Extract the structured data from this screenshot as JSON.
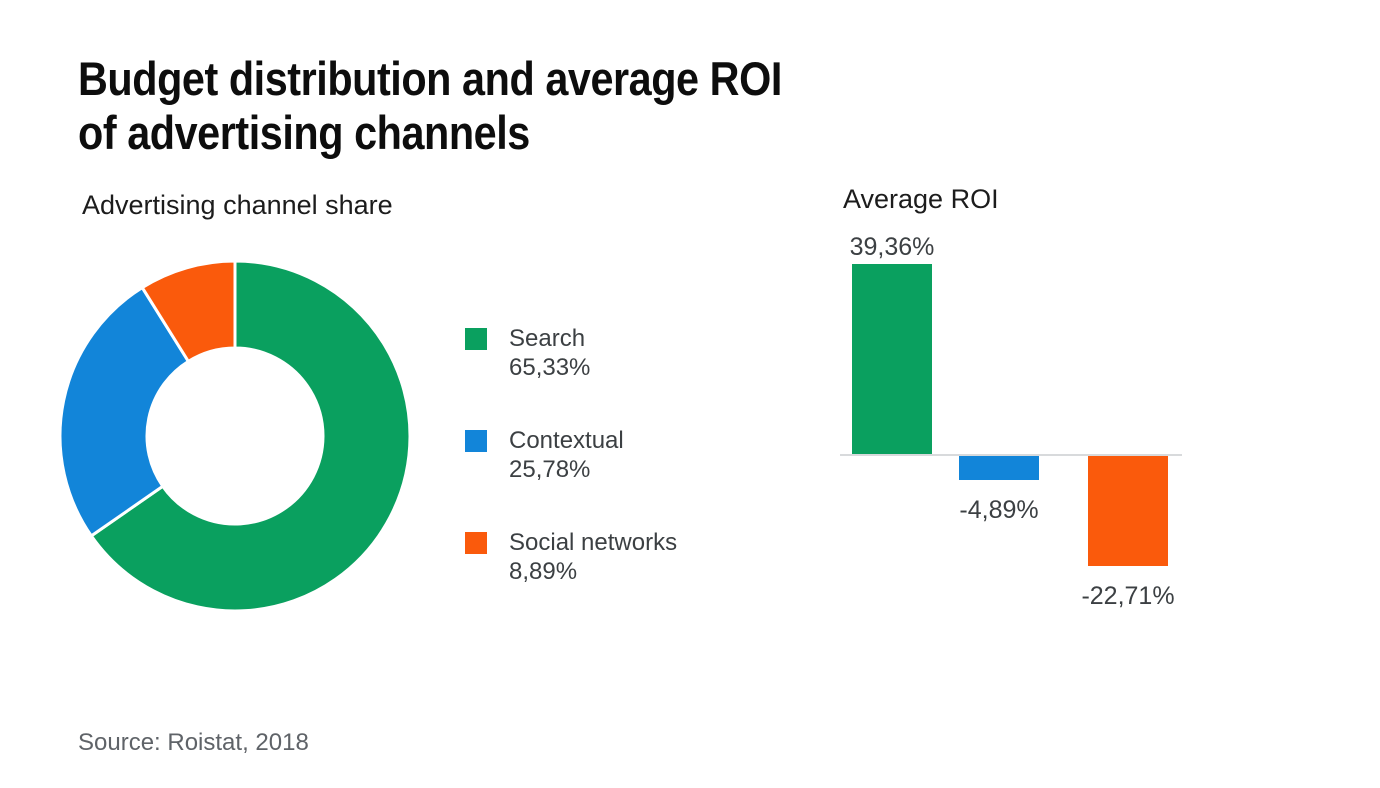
{
  "title": {
    "line1": "Budget distribution and average ROI",
    "line2": "of advertising channels"
  },
  "source": "Source: Roistat, 2018",
  "colors": {
    "green": "#0aa05f",
    "blue": "#1285d9",
    "orange": "#fa5a0c",
    "axis": "#d8dadc",
    "label_gray": "#3c4043"
  },
  "chart_data": [
    {
      "type": "pie",
      "style": "donut",
      "title": "Advertising channel share",
      "labels": [
        "Search",
        "Contextual",
        "Social networks"
      ],
      "values": [
        65.33,
        25.78,
        8.89
      ],
      "value_labels": [
        "65,33%",
        "25,78%",
        "8,89%"
      ],
      "colors": [
        "#0aa05f",
        "#1285d9",
        "#fa5a0c"
      ],
      "start_angle_deg": 0,
      "direction": "clockwise",
      "legend_position": "right",
      "slice_gap_color": "#ffffff"
    },
    {
      "type": "bar",
      "title": "Average ROI",
      "categories": [
        "Search",
        "Contextual",
        "Social networks"
      ],
      "values": [
        39.36,
        -4.89,
        -22.71
      ],
      "value_labels": [
        "39,36%",
        "-4,89%",
        "-22,71%"
      ],
      "colors": [
        "#0aa05f",
        "#1285d9",
        "#fa5a0c"
      ],
      "baseline": 0,
      "gridlines": false,
      "axis_labels_shown": false
    }
  ]
}
